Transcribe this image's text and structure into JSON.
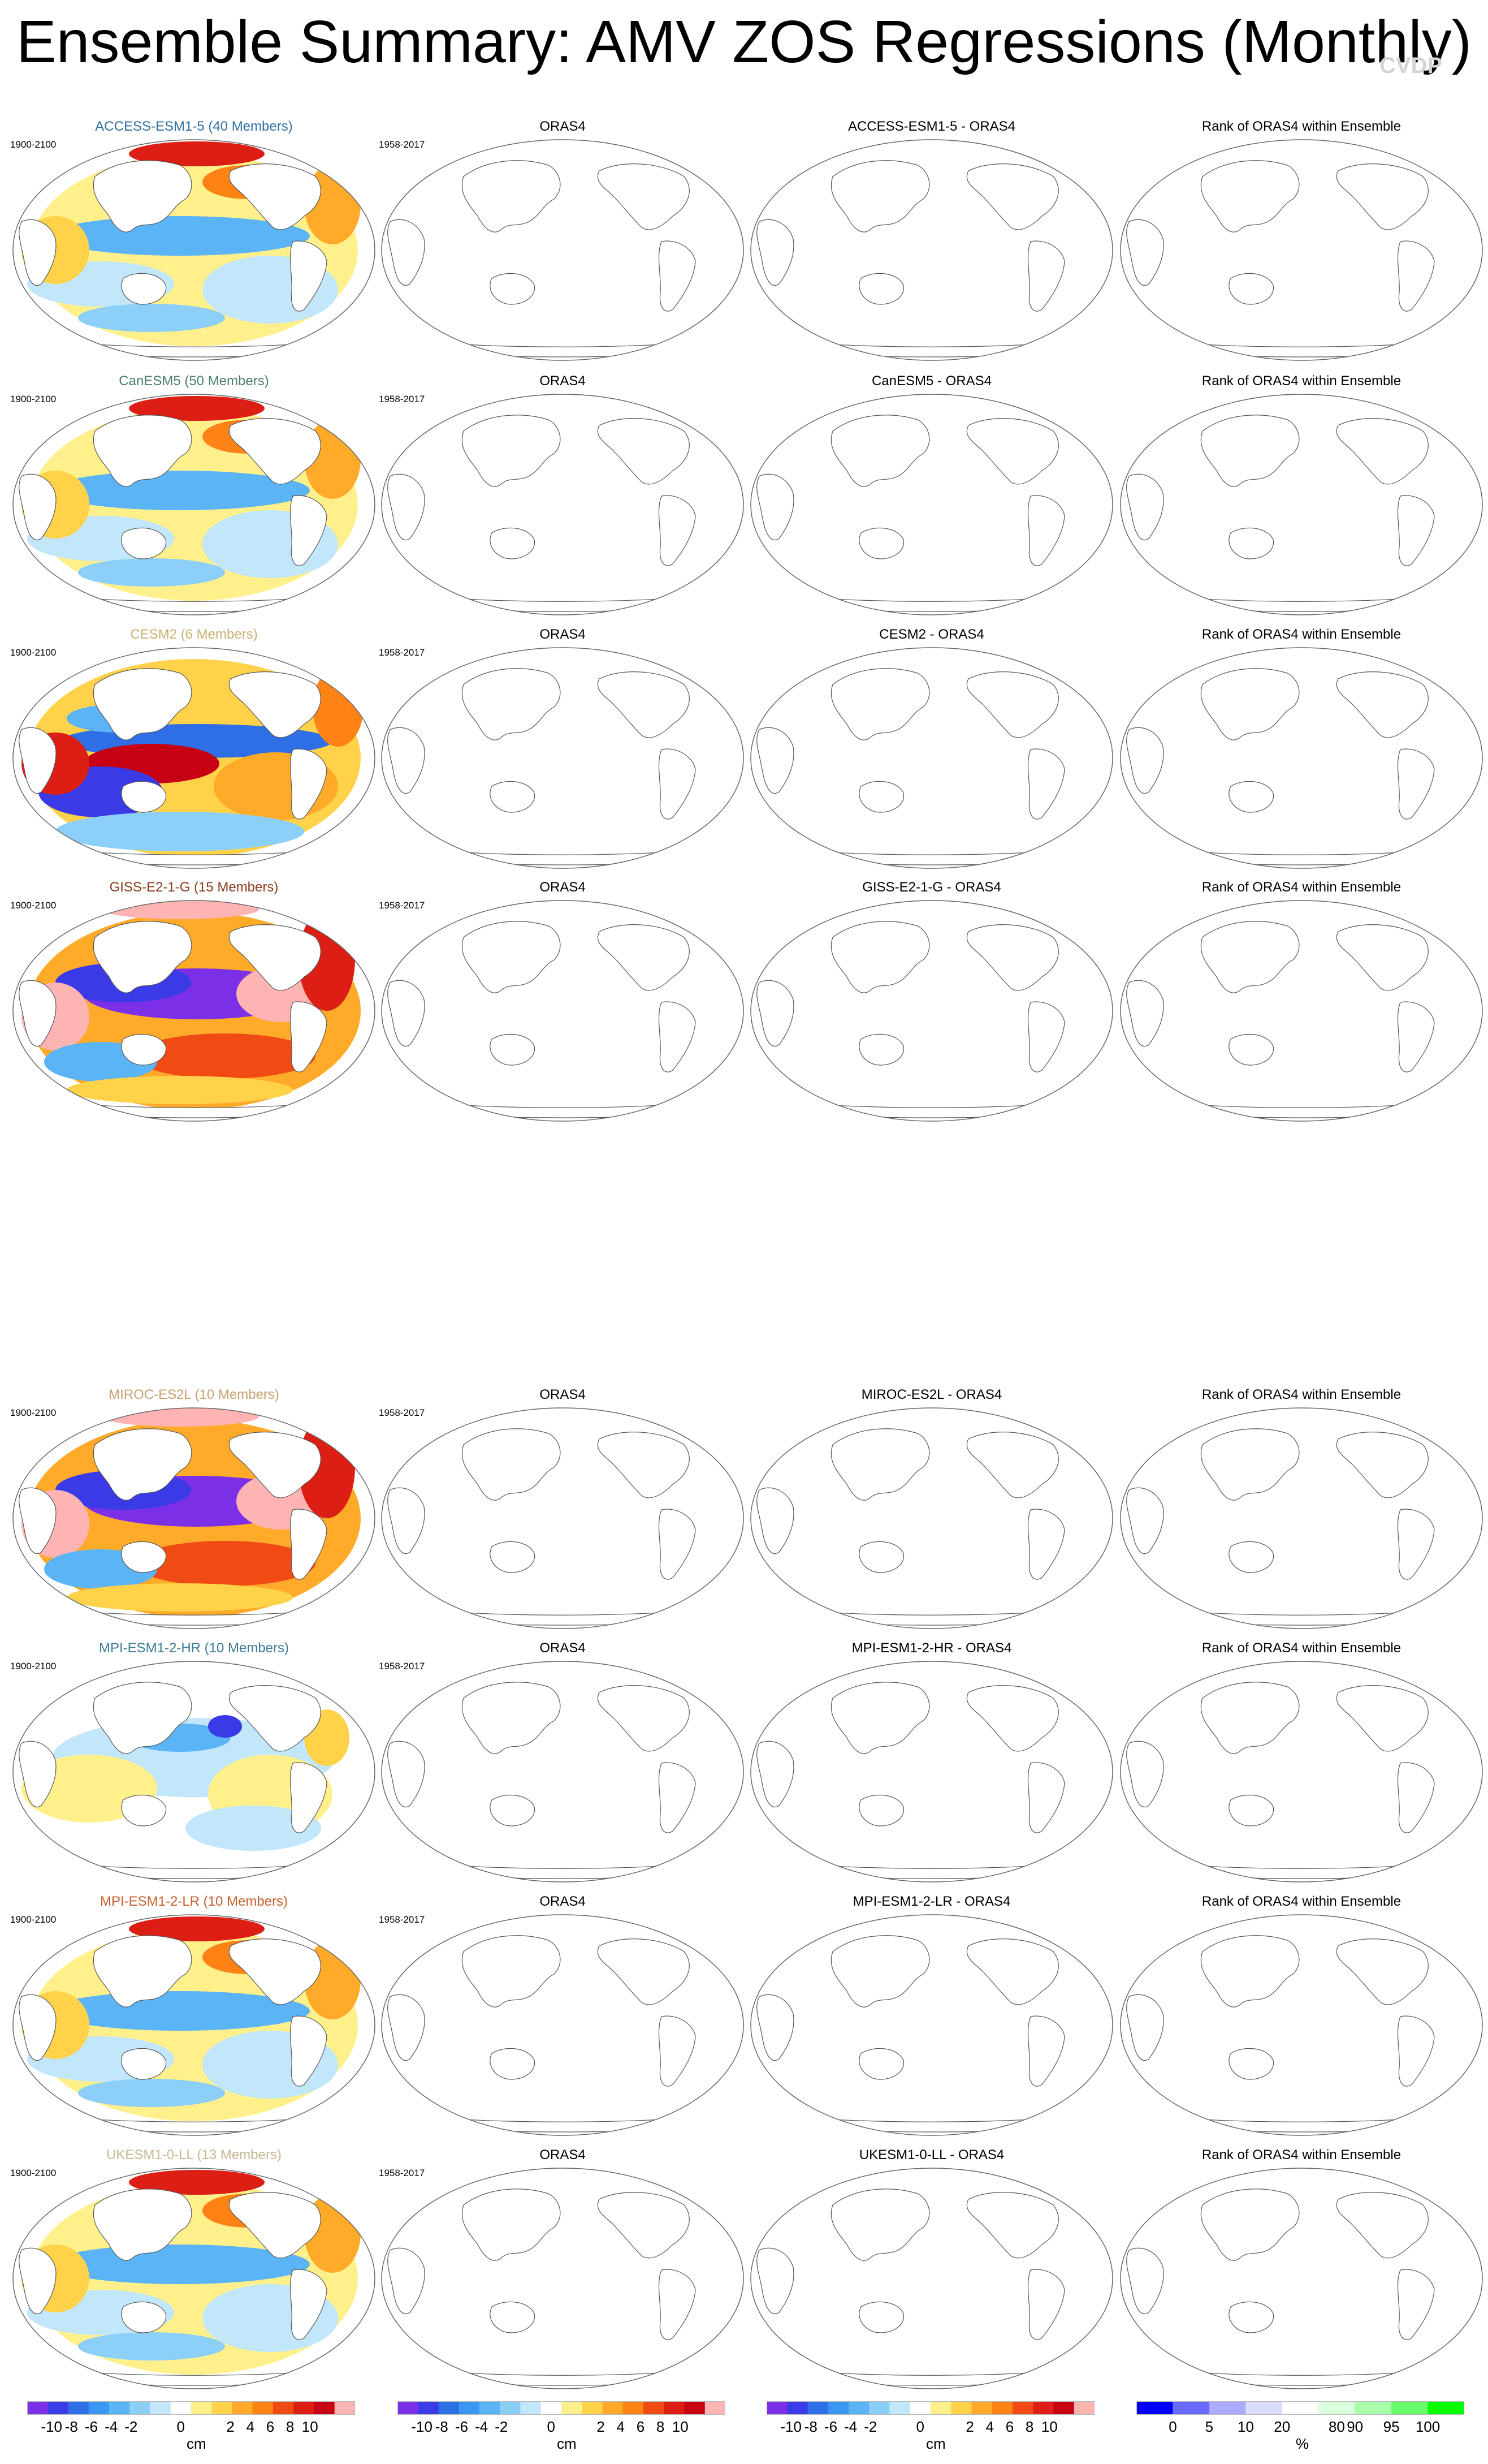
{
  "title": "Ensemble Summary: AMV ZOS Regressions (Monthly)",
  "watermark": "CVDP",
  "column_titles": {
    "obs": "ORAS4",
    "rank": "Rank of ORAS4 within Ensemble"
  },
  "periods": {
    "model": "1900-2100",
    "obs": "1958-2017"
  },
  "rows": [
    {
      "model": "ACCESS-ESM1-5",
      "title": "ACCESS-ESM1-5 (40 Members)",
      "title_color": "#2f6fa0",
      "diff_title": "ACCESS-ESM1-5 - ORAS4",
      "pattern": "moderate"
    },
    {
      "model": "CanESM5",
      "title": "CanESM5 (50 Members)",
      "title_color": "#4e7f6e",
      "diff_title": "CanESM5 - ORAS4",
      "pattern": "moderate"
    },
    {
      "model": "CESM2",
      "title": "CESM2 (6 Members)",
      "title_color": "#c8b070",
      "diff_title": "CESM2 - ORAS4",
      "pattern": "strong"
    },
    {
      "model": "GISS-E2-1-G",
      "title": "GISS-E2-1-G (15 Members)",
      "title_color": "#8b3a1a",
      "diff_title": "GISS-E2-1-G - ORAS4",
      "pattern": "extreme"
    },
    {
      "model": "MIROC-ES2L",
      "title": "MIROC-ES2L (10 Members)",
      "title_color": "#c8a070",
      "diff_title": "MIROC-ES2L - ORAS4",
      "pattern": "extreme"
    },
    {
      "model": "MPI-ESM1-2-HR",
      "title": "MPI-ESM1-2-HR (10 Members)",
      "title_color": "#3c7a96",
      "diff_title": "MPI-ESM1-2-HR - ORAS4",
      "pattern": "weak"
    },
    {
      "model": "MPI-ESM1-2-LR",
      "title": "MPI-ESM1-2-LR (10 Members)",
      "title_color": "#c8602a",
      "diff_title": "MPI-ESM1-2-LR - ORAS4",
      "pattern": "moderate"
    },
    {
      "model": "UKESM1-0-LL",
      "title": "UKESM1-0-LL (13 Members)",
      "title_color": "#c8b890",
      "diff_title": "UKESM1-0-LL - ORAS4",
      "pattern": "moderate"
    }
  ],
  "colorbar_cm": {
    "unit": "cm",
    "labels": [
      "-10",
      "-8",
      "-6",
      "-4",
      "-2",
      "0",
      "2",
      "4",
      "6",
      "8",
      "10"
    ],
    "colors": [
      "#7b2fe6",
      "#3a3ae6",
      "#2f6fe6",
      "#3a96f0",
      "#5ab4f5",
      "#8cd0fa",
      "#c2e6fa",
      "#ffffff",
      "#fff08c",
      "#ffd24a",
      "#ffaa28",
      "#ff8214",
      "#f04b14",
      "#dc1e14",
      "#c80014",
      "#ffb4b4"
    ]
  },
  "colorbar_rank": {
    "unit": "%",
    "labels": [
      "0",
      "5",
      "10",
      "20",
      "80",
      "90",
      "95",
      "100"
    ],
    "colors": [
      "#0000ff",
      "#6a6aff",
      "#aaaaff",
      "#dcdcff",
      "#ffffff",
      "#dcffdc",
      "#aaffaa",
      "#6aff6a",
      "#00ff00"
    ]
  }
}
